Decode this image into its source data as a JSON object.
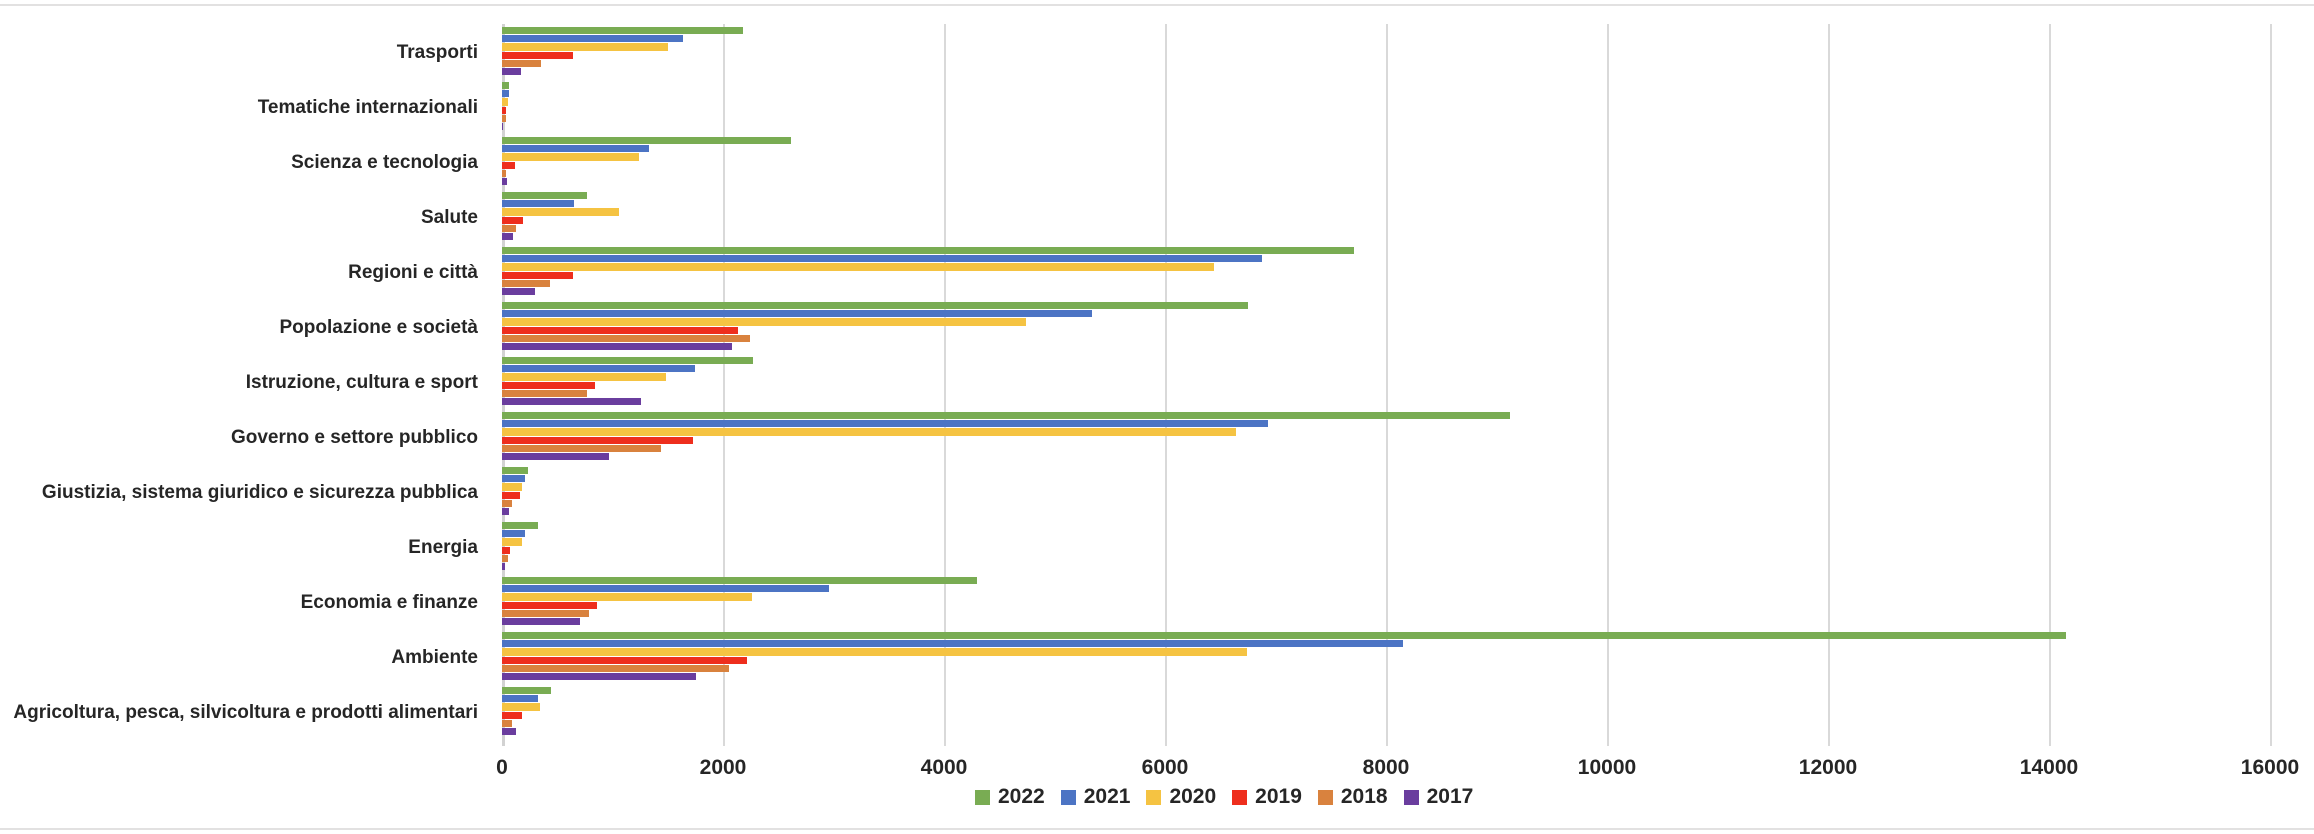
{
  "chart_data": {
    "type": "bar",
    "orientation": "horizontal",
    "title": "",
    "xlabel": "",
    "ylabel": "",
    "xlim": [
      0,
      16000
    ],
    "x_ticks": [
      0,
      2000,
      4000,
      6000,
      8000,
      10000,
      12000,
      14000,
      16000
    ],
    "grid": true,
    "legend_position": "bottom",
    "categories": [
      "Trasporti",
      "Tematiche internazionali",
      "Scienza e tecnologia",
      "Salute",
      "Regioni e città",
      "Popolazione e società",
      "Istruzione, cultura e sport",
      "Governo e settore pubblico",
      "Giustizia, sistema giuridico e sicurezza pubblica",
      "Energia",
      "Economia e finanze",
      "Ambiente",
      "Agricoltura, pesca, silvicoltura e prodotti alimentari"
    ],
    "series": [
      {
        "name": "2022",
        "color": "#79AC53",
        "values": [
          2180,
          60,
          2615,
          770,
          7710,
          6750,
          2270,
          9120,
          235,
          325,
          4300,
          14150,
          440
        ]
      },
      {
        "name": "2021",
        "color": "#4C74C4",
        "values": [
          1640,
          60,
          1330,
          650,
          6880,
          5340,
          1750,
          6930,
          210,
          205,
          2960,
          8150,
          330
        ]
      },
      {
        "name": "2020",
        "color": "#F5C342",
        "values": [
          1500,
          50,
          1240,
          1060,
          6440,
          4740,
          1480,
          6640,
          185,
          180,
          2260,
          6740,
          345
        ]
      },
      {
        "name": "2019",
        "color": "#EE2E1D",
        "values": [
          640,
          36,
          120,
          190,
          640,
          2140,
          840,
          1730,
          160,
          75,
          860,
          2215,
          185
        ]
      },
      {
        "name": "2018",
        "color": "#D9823E",
        "values": [
          350,
          35,
          35,
          130,
          430,
          2240,
          770,
          1440,
          95,
          55,
          790,
          2050,
          90
        ]
      },
      {
        "name": "2017",
        "color": "#6A3D9E",
        "values": [
          170,
          10,
          45,
          100,
          300,
          2080,
          1260,
          970,
          60,
          30,
          705,
          1755,
          125
        ]
      }
    ],
    "colors": {
      "gridline": "#d9d9d9",
      "axis_line": "#d2d2d2",
      "label_text": "#262626"
    }
  }
}
